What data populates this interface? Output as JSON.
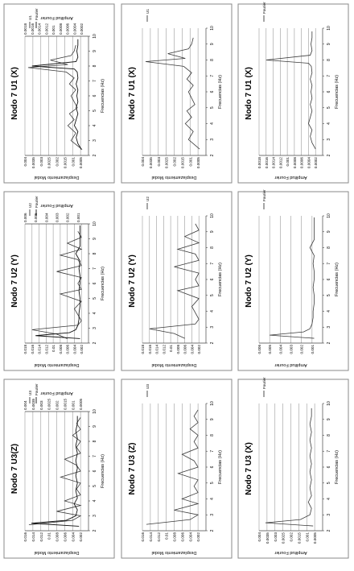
{
  "figure_title": "",
  "chart_data": [
    {
      "type": "line",
      "title": "Nodo 7 U1 (X)",
      "xlabel": "Frecuencias (Hz)",
      "ylabel": "Desplazamiento Modal",
      "ylabel2": "Amplitud Fourier",
      "xlim": [
        2,
        10
      ],
      "xticks": [
        "2",
        "3",
        "4",
        "5",
        "6",
        "7",
        "8",
        "9",
        "10"
      ],
      "ylim": [
        0,
        0.004
      ],
      "yticks": [
        "0.0005",
        "0.001",
        "0.0015",
        "0.002",
        "0.0025",
        "0.003",
        "0.0035",
        "0.004"
      ],
      "ylim2": [
        0,
        0.0018
      ],
      "yticks2": [
        "0.0002",
        "0.0004",
        "0.0006",
        "0.0008",
        "0.001",
        "0.0012",
        "0.0014",
        "0.0016",
        "0.0018"
      ],
      "legend": "right",
      "series": [
        {
          "name": "U1",
          "axis": "left",
          "x": [
            2.4,
            3.0,
            3.5,
            4.0,
            4.4,
            4.8,
            5.2,
            5.6,
            6.0,
            6.4,
            6.8,
            7.2,
            7.6,
            7.9,
            8.1,
            8.4,
            8.7,
            9.0,
            9.4
          ],
          "y": [
            0.0004,
            0.0011,
            0.0008,
            0.0013,
            0.0009,
            0.0012,
            0.0007,
            0.0009,
            0.0011,
            0.0008,
            0.0012,
            0.0009,
            0.0014,
            0.0038,
            0.0013,
            0.0024,
            0.0011,
            0.0009,
            0.0008
          ]
        },
        {
          "name": "Fourier",
          "axis": "right",
          "x": [
            2.4,
            2.8,
            3.2,
            3.6,
            4.0,
            4.4,
            4.8,
            5.2,
            5.6,
            6.0,
            6.4,
            6.8,
            7.2,
            7.6,
            7.8,
            8.0,
            8.3,
            8.6,
            9.0,
            9.4,
            9.8
          ],
          "y": [
            0.0002,
            0.0003,
            0.00035,
            0.0003,
            0.0004,
            0.00035,
            0.0003,
            0.00035,
            0.0003,
            0.00033,
            0.0003,
            0.00035,
            0.0003,
            0.00032,
            0.0004,
            0.0016,
            0.00035,
            0.0003,
            0.00033,
            0.0003,
            0.0003
          ]
        }
      ]
    },
    {
      "type": "line",
      "title": "Nodo 7 U1 (X)",
      "xlabel": "Frecuencias (Hz)",
      "ylabel": "Desplazamiento Modal",
      "xlim": [
        2,
        10
      ],
      "xticks": [
        "2",
        "3",
        "4",
        "5",
        "6",
        "7",
        "8",
        "9",
        "10"
      ],
      "ylim": [
        0,
        0.004
      ],
      "yticks": [
        "0.0005",
        "0.001",
        "0.0015",
        "0.002",
        "0.0025",
        "0.003",
        "0.0035",
        "0.004"
      ],
      "legend": "right",
      "series": [
        {
          "name": "U1",
          "axis": "left",
          "x": [
            2.4,
            3.0,
            3.5,
            4.0,
            4.4,
            4.8,
            5.2,
            5.6,
            6.0,
            6.4,
            6.8,
            7.2,
            7.6,
            7.9,
            8.1,
            8.4,
            8.7,
            9.0,
            9.4
          ],
          "y": [
            0.0004,
            0.0011,
            0.0008,
            0.0013,
            0.0009,
            0.0012,
            0.0007,
            0.0009,
            0.0011,
            0.0008,
            0.0012,
            0.0009,
            0.0014,
            0.0038,
            0.0013,
            0.0024,
            0.0011,
            0.0009,
            0.0008
          ]
        }
      ]
    },
    {
      "type": "line",
      "title": "Nodo 7 U1 (X)",
      "xlabel": "Frecuencias (Hz)",
      "ylabel": "Amplitud Fourier",
      "xlim": [
        2,
        10
      ],
      "xticks": [
        "2",
        "3",
        "4",
        "5",
        "6",
        "7",
        "8",
        "9",
        "10"
      ],
      "ylim": [
        0,
        0.0018
      ],
      "yticks": [
        "0.0002",
        "0.0004",
        "0.0006",
        "0.0008",
        "0.001",
        "0.0012",
        "0.0014",
        "0.0016",
        "0.0018"
      ],
      "legend": "right",
      "series": [
        {
          "name": "Fourier",
          "axis": "left",
          "x": [
            2.4,
            2.8,
            3.2,
            3.6,
            4.0,
            4.4,
            4.8,
            5.2,
            5.6,
            6.0,
            6.4,
            6.8,
            7.2,
            7.6,
            7.8,
            8.0,
            8.3,
            8.6,
            9.0,
            9.4,
            9.8
          ],
          "y": [
            0.0002,
            0.0003,
            0.00035,
            0.0003,
            0.0004,
            0.00035,
            0.0003,
            0.00035,
            0.0003,
            0.00033,
            0.0003,
            0.00035,
            0.0003,
            0.00032,
            0.0004,
            0.0016,
            0.00035,
            0.0003,
            0.00033,
            0.0003,
            0.0003
          ]
        }
      ]
    },
    {
      "type": "line",
      "title": "Nodo 7 U2 (Y)",
      "xlabel": "Frecuencias (Hz)",
      "ylabel": "Desplazamiento Modal",
      "ylabel2": "Amplitud Fourier",
      "xlim": [
        2,
        10
      ],
      "xticks": [
        "2",
        "3",
        "4",
        "5",
        "6",
        "7",
        "8",
        "9",
        "10"
      ],
      "ylim": [
        0,
        0.018
      ],
      "yticks": [
        "0.002",
        "0.004",
        "0.006",
        "0.008",
        "0.01",
        "0.012",
        "0.014",
        "0.016",
        "0.018"
      ],
      "ylim2": [
        0,
        0.006
      ],
      "yticks2": [
        "0.001",
        "0.002",
        "0.003",
        "0.004",
        "0.005",
        "0.006"
      ],
      "legend": "right",
      "series": [
        {
          "name": "U2",
          "axis": "left",
          "x": [
            2.3,
            2.6,
            2.9,
            3.2,
            3.5,
            3.9,
            4.3,
            4.8,
            5.3,
            5.6,
            6.0,
            6.4,
            6.8,
            7.2,
            7.6,
            7.9,
            8.3,
            8.7,
            9.1,
            9.5
          ],
          "y": [
            0.006,
            0.009,
            0.016,
            0.003,
            0.002,
            0.003,
            0.004,
            0.002,
            0.008,
            0.002,
            0.003,
            0.002,
            0.009,
            0.002,
            0.003,
            0.008,
            0.002,
            0.006,
            0.002,
            0.003
          ]
        },
        {
          "name": "Fourier",
          "axis": "right",
          "x": [
            2.3,
            2.5,
            2.7,
            2.9,
            3.2,
            3.6,
            4.0,
            4.5,
            5.0,
            5.5,
            6.0,
            6.5,
            7.0,
            7.5,
            8.0,
            8.5,
            9.0,
            9.5,
            9.9
          ],
          "y": [
            0.0008,
            0.005,
            0.0018,
            0.0012,
            0.001,
            0.0009,
            0.0009,
            0.0008,
            0.0008,
            0.0009,
            0.0008,
            0.0008,
            0.0009,
            0.0008,
            0.0012,
            0.0008,
            0.0008,
            0.0008,
            0.0008
          ]
        }
      ]
    },
    {
      "type": "line",
      "title": "Nodo 7 U2 (Y)",
      "xlabel": "Frecuencias (Hz)",
      "ylabel": "Desplazamiento Modal",
      "xlim": [
        2,
        10
      ],
      "xticks": [
        "2",
        "3",
        "4",
        "5",
        "6",
        "7",
        "8",
        "9",
        "10"
      ],
      "ylim": [
        0,
        0.018
      ],
      "yticks": [
        "0.002",
        "0.004",
        "0.006",
        "0.008",
        "0.01",
        "0.012",
        "0.014",
        "0.016",
        "0.018"
      ],
      "legend": "right",
      "series": [
        {
          "name": "U2",
          "axis": "left",
          "x": [
            2.3,
            2.6,
            2.9,
            3.2,
            3.5,
            3.9,
            4.3,
            4.8,
            5.3,
            5.6,
            6.0,
            6.4,
            6.8,
            7.2,
            7.6,
            7.9,
            8.3,
            8.7,
            9.1,
            9.5
          ],
          "y": [
            0.006,
            0.009,
            0.016,
            0.003,
            0.002,
            0.003,
            0.004,
            0.002,
            0.008,
            0.002,
            0.003,
            0.002,
            0.009,
            0.002,
            0.003,
            0.008,
            0.002,
            0.006,
            0.002,
            0.003
          ]
        }
      ]
    },
    {
      "type": "line",
      "title": "Nodo 7 U2 (Y)",
      "xlabel": "Frecuencias (Hz)",
      "ylabel": "Amplitud Fourier",
      "xlim": [
        2,
        10
      ],
      "xticks": [
        "2",
        "3",
        "4",
        "5",
        "6",
        "7",
        "8",
        "9",
        "10"
      ],
      "ylim": [
        0,
        0.006
      ],
      "yticks": [
        "0.001",
        "0.002",
        "0.003",
        "0.004",
        "0.005",
        "0.006"
      ],
      "legend": "right",
      "series": [
        {
          "name": "Fourier",
          "axis": "left",
          "x": [
            2.3,
            2.5,
            2.7,
            2.9,
            3.2,
            3.6,
            4.0,
            4.5,
            5.0,
            5.5,
            6.0,
            6.5,
            7.0,
            7.5,
            8.0,
            8.5,
            9.0,
            9.5,
            9.9
          ],
          "y": [
            0.0008,
            0.005,
            0.0018,
            0.0012,
            0.001,
            0.0009,
            0.0009,
            0.0008,
            0.0008,
            0.0009,
            0.0008,
            0.0008,
            0.0009,
            0.0008,
            0.0012,
            0.0008,
            0.0008,
            0.0008,
            0.0008
          ]
        }
      ]
    },
    {
      "type": "line",
      "title": "Nodo 7 U3(Z)",
      "xlabel": "Frecuencias (Hz)",
      "ylabel": "Desplazamiento Modal",
      "ylabel2": "Amplitud Fourier",
      "xlim": [
        2,
        10
      ],
      "xticks": [
        "2",
        "3",
        "4",
        "5",
        "6",
        "7",
        "8",
        "9",
        "10"
      ],
      "ylim": [
        0,
        0.016
      ],
      "yticks": [
        "0.002",
        "0.004",
        "0.006",
        "0.008",
        "0.01",
        "0.012",
        "0.014",
        "0.016"
      ],
      "ylim2": [
        0,
        0.004
      ],
      "yticks2": [
        "0.0005",
        "0.001",
        "0.0015",
        "0.002",
        "0.0025",
        "0.003",
        "0.0035",
        "0.004"
      ],
      "legend": "right",
      "series": [
        {
          "name": "U3",
          "axis": "left",
          "x": [
            2.4,
            2.7,
            3.0,
            3.3,
            3.7,
            4.0,
            4.4,
            4.8,
            5.2,
            5.6,
            6.0,
            6.4,
            6.8,
            7.2,
            7.6,
            8.0,
            8.4,
            8.8,
            9.2,
            9.6
          ],
          "y": [
            0.015,
            0.004,
            0.002,
            0.008,
            0.002,
            0.006,
            0.002,
            0.003,
            0.002,
            0.007,
            0.002,
            0.003,
            0.006,
            0.002,
            0.003,
            0.002,
            0.004,
            0.002,
            0.003,
            0.002
          ]
        },
        {
          "name": "Fourier",
          "axis": "right",
          "x": [
            2.3,
            2.5,
            2.7,
            3.0,
            3.4,
            3.8,
            4.2,
            4.7,
            5.2,
            5.7,
            6.2,
            6.7,
            7.2,
            7.7,
            8.2,
            8.7,
            9.2,
            9.7
          ],
          "y": [
            0.0006,
            0.0036,
            0.0014,
            0.0008,
            0.0007,
            0.0009,
            0.0007,
            0.0008,
            0.0007,
            0.0008,
            0.0007,
            0.0008,
            0.0007,
            0.0008,
            0.0007,
            0.0008,
            0.0007,
            0.0007
          ]
        }
      ]
    },
    {
      "type": "line",
      "title": "Nodo 7 U3 (Z)",
      "xlabel": "Frecuencias (Hz)",
      "ylabel": "Desplazamiento Modal",
      "xlim": [
        2,
        10
      ],
      "xticks": [
        "2",
        "3",
        "4",
        "5",
        "6",
        "7",
        "8",
        "9",
        "10"
      ],
      "ylim": [
        0,
        0.016
      ],
      "yticks": [
        "0.002",
        "0.004",
        "0.006",
        "0.008",
        "0.01",
        "0.012",
        "0.014",
        "0.016"
      ],
      "legend": "right",
      "series": [
        {
          "name": "U3",
          "axis": "left",
          "x": [
            2.4,
            2.7,
            3.0,
            3.3,
            3.7,
            4.0,
            4.4,
            4.8,
            5.2,
            5.6,
            6.0,
            6.4,
            6.8,
            7.2,
            7.6,
            8.0,
            8.4,
            8.8,
            9.2,
            9.6
          ],
          "y": [
            0.015,
            0.004,
            0.002,
            0.008,
            0.002,
            0.006,
            0.002,
            0.003,
            0.002,
            0.007,
            0.002,
            0.003,
            0.006,
            0.002,
            0.003,
            0.002,
            0.004,
            0.002,
            0.003,
            0.002
          ]
        }
      ]
    },
    {
      "type": "line",
      "title": "Nodo 7 U3 (X)",
      "xlabel": "Frecuencias (Hz)",
      "ylabel": "Amplitud Fourier",
      "xlim": [
        2,
        10
      ],
      "xticks": [
        "2",
        "3",
        "4",
        "5",
        "6",
        "7",
        "8",
        "9",
        "10"
      ],
      "ylim": [
        0,
        0.004
      ],
      "yticks": [
        "0.0005",
        "0.001",
        "0.0015",
        "0.002",
        "0.0025",
        "0.003",
        "0.0035",
        "0.004"
      ],
      "legend": "right",
      "series": [
        {
          "name": "Fourier",
          "axis": "left",
          "x": [
            2.3,
            2.5,
            2.7,
            3.0,
            3.4,
            3.8,
            4.2,
            4.7,
            5.2,
            5.7,
            6.2,
            6.7,
            7.2,
            7.7,
            8.2,
            8.7,
            9.2,
            9.7
          ],
          "y": [
            0.0006,
            0.0036,
            0.0014,
            0.0008,
            0.0007,
            0.0009,
            0.0007,
            0.0008,
            0.0007,
            0.0008,
            0.0007,
            0.0008,
            0.0007,
            0.0008,
            0.0007,
            0.0008,
            0.0007,
            0.0007
          ]
        }
      ]
    }
  ]
}
